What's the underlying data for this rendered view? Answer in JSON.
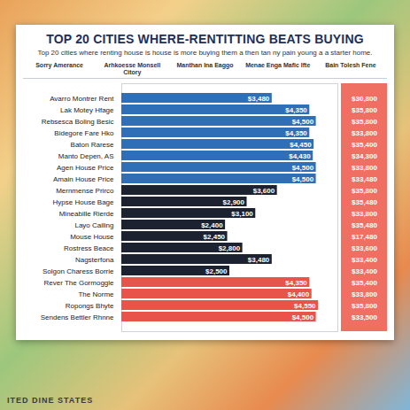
{
  "chart_data": {
    "type": "bar",
    "orientation": "horizontal",
    "title": "TOP 20 CITIES WHERE-RENTITTING BEATS BUYING",
    "subtitle": "Top 20 cities where renting house is house is more buying them a then tan ny pain young a a starter home.",
    "column_headers": [
      "Sorry Amerance",
      "Arhkoesse Monsell Citory",
      "Manthan Ina Eaggo",
      "Menae Enga Mafic Ifte",
      "Bain Tolesh Fene"
    ],
    "categories": [
      "Avarro Montrer Rent",
      "Lak Motey Hfage",
      "Rebsesca Boling Besic",
      "Bidegore Fare Hko",
      "Baton Rarese",
      "Manto Depen, AS",
      "Agen House Price",
      "Amain House Price",
      "Mernmense Prirco",
      "Hypse House Bage",
      "Mineabille Rierde",
      "Layo Cailing",
      "Mouse House",
      "Rostress Beace",
      "Nagsterfona",
      "Solgon Charess Borrie",
      "Rever The Gormoggle",
      "The Norme",
      "Ropongs Bhyte",
      "Sendens Bettler Rhnne"
    ],
    "values": [
      3480,
      4350,
      4500,
      4350,
      4450,
      4430,
      4500,
      4500,
      3600,
      2900,
      3100,
      2400,
      2450,
      2800,
      3480,
      2500,
      4350,
      4400,
      4550,
      4500
    ],
    "value_labels": [
      "$3,480",
      "$4,350",
      "$4,500",
      "$4,350",
      "$4,450",
      "$4,430",
      "$4,500",
      "$4,500",
      "$3,600",
      "$2,900",
      "$3,100",
      "$2,400",
      "$2,450",
      "$2,800",
      "$3,480",
      "$2,500",
      "$4,350",
      "$4,400",
      "$4,550",
      "$4,500"
    ],
    "colors": [
      "#2f6fb8",
      "#2f6fb8",
      "#2f6fb8",
      "#2f6fb8",
      "#2f6fb8",
      "#2f6fb8",
      "#2f6fb8",
      "#2f6fb8",
      "#1c2230",
      "#1c2230",
      "#1c2230",
      "#1c2230",
      "#1c2230",
      "#1c2230",
      "#1c2230",
      "#1c2230",
      "#e8534a",
      "#e8534a",
      "#e8534a",
      "#e8534a"
    ],
    "table_column": {
      "values": [
        "$30,800",
        "$35,800",
        "$35,800",
        "$33,800",
        "$35,400",
        "$34,300",
        "$33,800",
        "$33,480",
        "$35,800",
        "$35,480",
        "$33,800",
        "$35,480",
        "$17,480",
        "$33,600",
        "$33,400",
        "$33,400",
        "$35,400",
        "$33,800",
        "$35,800",
        "$33,500"
      ]
    },
    "xlim": [
      0,
      5000
    ],
    "data_labels": true,
    "tick_labels": "y",
    "map_label": "ITED DINE STATES"
  }
}
